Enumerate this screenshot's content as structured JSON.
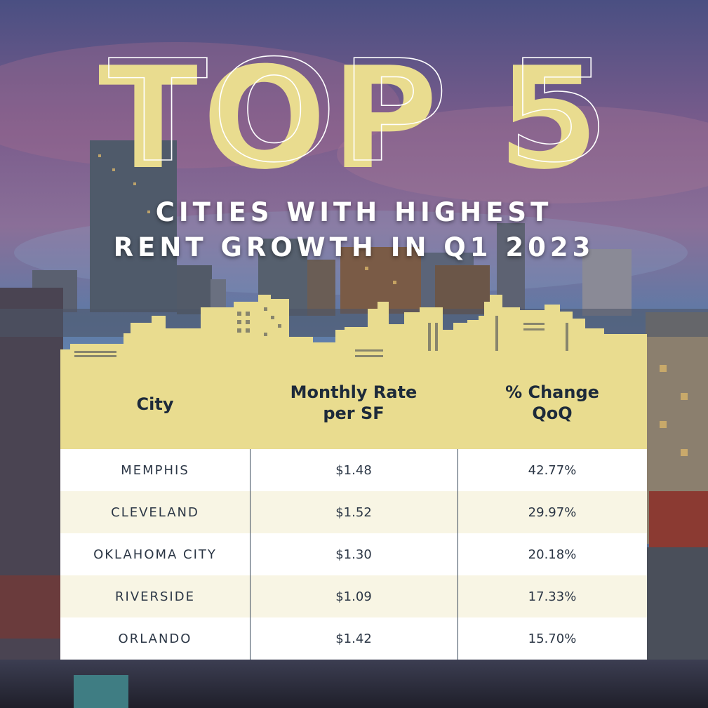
{
  "headline": "TOP 5",
  "subtitle_lines": [
    "CITIES WITH HIGHEST",
    "RENT GROWTH IN Q1 2023"
  ],
  "colors": {
    "accent_gold": "#e9dc8f",
    "header_text": "#1d2a3a",
    "row_alt": "#f8f5e4"
  },
  "table": {
    "headers": {
      "city": "City",
      "rate": "Monthly Rate per SF",
      "change": "% Change QoQ"
    },
    "rows": [
      {
        "city": "MEMPHIS",
        "rate": "$1.48",
        "change": "42.77%"
      },
      {
        "city": "CLEVELAND",
        "rate": "$1.52",
        "change": "29.97%"
      },
      {
        "city": "OKLAHOMA CITY",
        "rate": "$1.30",
        "change": "20.18%"
      },
      {
        "city": "RIVERSIDE",
        "rate": "$1.09",
        "change": "17.33%"
      },
      {
        "city": "ORLANDO",
        "rate": "$1.42",
        "change": "15.70%"
      }
    ]
  }
}
